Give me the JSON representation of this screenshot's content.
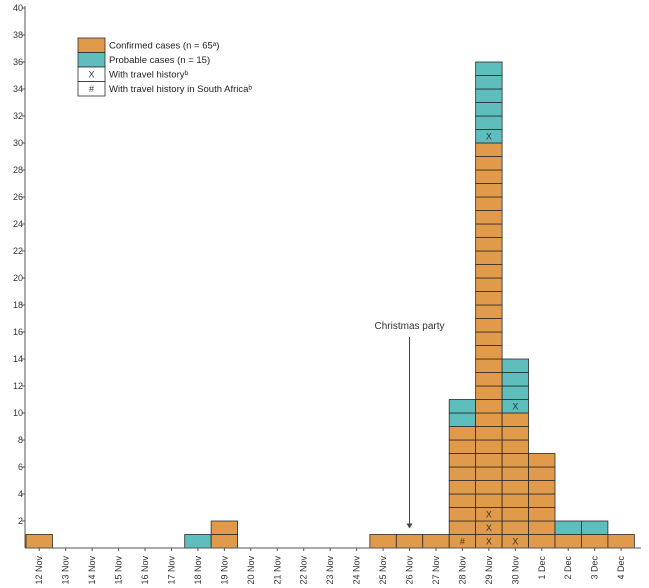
{
  "chart_data": {
    "type": "bar",
    "stacked": true,
    "title": "",
    "xlabel": "",
    "ylabel": "",
    "ylim": [
      0,
      40
    ],
    "yticks": [
      2,
      4,
      6,
      8,
      10,
      12,
      14,
      16,
      18,
      20,
      22,
      24,
      26,
      28,
      30,
      32,
      34,
      36,
      38,
      40
    ],
    "grid": false,
    "legend_position": "top-left",
    "categories": [
      "12 Nov",
      "13 Nov",
      "14 Nov",
      "15 Nov",
      "16 Nov",
      "17 Nov",
      "18 Nov",
      "19 Nov",
      "20 Nov",
      "21 Nov",
      "22 Nov",
      "23 Nov",
      "24 Nov",
      "25 Nov",
      "26 Nov",
      "27 Nov",
      "28 Nov",
      "29 Nov",
      "30 Nov",
      "1 Dec",
      "2 Dec",
      "3 Dec",
      "4 Dec"
    ],
    "series": [
      {
        "name": "Confirmed cases (n = 65ᵃ)",
        "color": "#E19A4A",
        "values": [
          1,
          0,
          0,
          0,
          0,
          0,
          0,
          2,
          0,
          0,
          0,
          0,
          0,
          1,
          1,
          1,
          9,
          30,
          10,
          7,
          1,
          1,
          1
        ]
      },
      {
        "name": "Probable cases (n = 15)",
        "color": "#5EBDBD",
        "values": [
          0,
          0,
          0,
          0,
          0,
          0,
          1,
          0,
          0,
          0,
          0,
          0,
          0,
          0,
          0,
          0,
          2,
          6,
          4,
          0,
          1,
          1,
          0
        ]
      }
    ],
    "markers": [
      {
        "category": "28 Nov",
        "level": 1,
        "symbol": "#"
      },
      {
        "category": "29 Nov",
        "level": 1,
        "symbol": "X"
      },
      {
        "category": "29 Nov",
        "level": 2,
        "symbol": "X"
      },
      {
        "category": "29 Nov",
        "level": 3,
        "symbol": "X"
      },
      {
        "category": "29 Nov",
        "level": 31,
        "symbol": "X"
      },
      {
        "category": "30 Nov",
        "level": 1,
        "symbol": "X"
      },
      {
        "category": "30 Nov",
        "level": 11,
        "symbol": "X"
      }
    ],
    "legend": [
      {
        "label": "Confirmed cases (n = 65ᵃ)",
        "swatch": "#E19A4A",
        "symbol": ""
      },
      {
        "label": "Probable cases (n = 15)",
        "swatch": "#5EBDBD",
        "symbol": ""
      },
      {
        "label": "With travel historyᵇ",
        "swatch": "#FFFFFF",
        "symbol": "X"
      },
      {
        "label": "With travel history in South Africaᵇ",
        "swatch": "#FFFFFF",
        "symbol": "#"
      }
    ],
    "annotations": [
      {
        "text": "Christmas party",
        "category": "26 Nov",
        "arrow_to_level": 1
      }
    ]
  }
}
